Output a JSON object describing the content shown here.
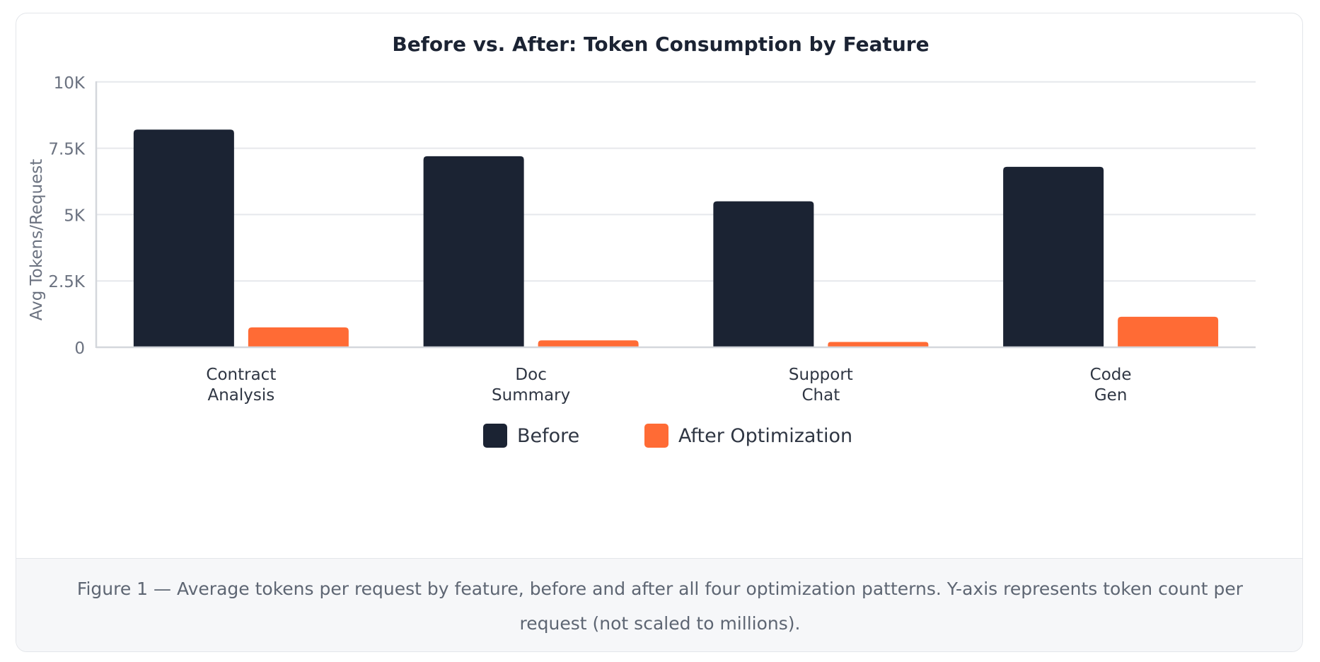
{
  "chart_data": {
    "type": "bar",
    "title": "Before vs. After: Token Consumption by Feature",
    "xlabel": "",
    "ylabel": "Avg Tokens/Request",
    "ylim": [
      0,
      10500
    ],
    "yticks": [
      0,
      2500,
      5000,
      7500,
      10000
    ],
    "ytick_labels": [
      "0",
      "2.5K",
      "5K",
      "7.5K",
      "10K"
    ],
    "categories": [
      [
        "Contract",
        "Analysis"
      ],
      [
        "Doc",
        "Summary"
      ],
      [
        "Support",
        "Chat"
      ],
      [
        "Code",
        "Gen"
      ]
    ],
    "series": [
      {
        "name": "Before",
        "color": "#1b2333",
        "values": [
          8200,
          7200,
          5500,
          6800
        ]
      },
      {
        "name": "After Optimization",
        "color": "#ff6b35",
        "values": [
          750,
          260,
          200,
          1150
        ]
      }
    ],
    "grid": true,
    "legend_position": "bottom-center"
  },
  "caption": "Figure 1 — Average tokens per request by feature, before and after all four optimization patterns. Y-axis represents token count per request (not scaled to millions)."
}
